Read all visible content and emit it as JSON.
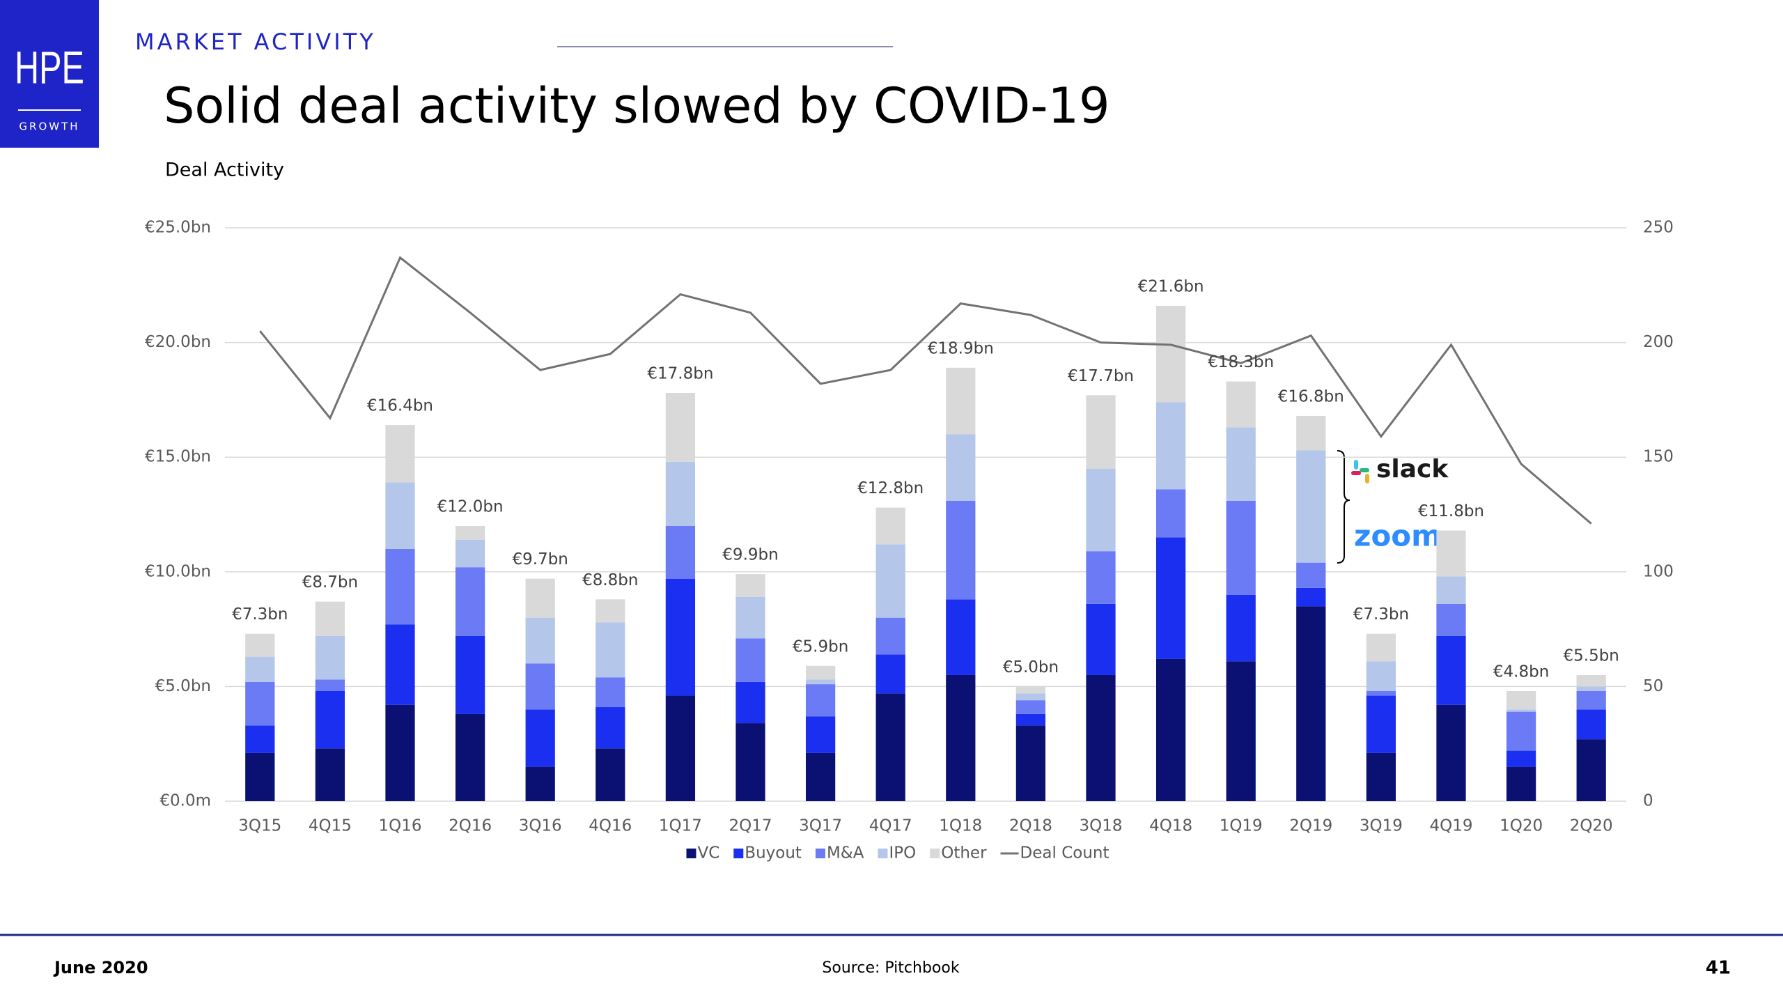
{
  "header": {
    "logo_main": "HPE",
    "logo_sub": "GROWTH",
    "section": "MARKET ACTIVITY",
    "title": "Solid deal activity slowed by COVID-19"
  },
  "chart_data": {
    "type": "bar",
    "stacked": true,
    "subtitle": "Deal Activity",
    "categories": [
      "3Q15",
      "4Q15",
      "1Q16",
      "2Q16",
      "3Q16",
      "4Q16",
      "1Q17",
      "2Q17",
      "3Q17",
      "4Q17",
      "1Q18",
      "2Q18",
      "3Q18",
      "4Q18",
      "1Q19",
      "2Q19",
      "3Q19",
      "4Q19",
      "1Q20",
      "2Q20"
    ],
    "series": [
      {
        "name": "VC",
        "color": "#0a1172",
        "values": [
          2.1,
          2.3,
          4.2,
          3.8,
          1.5,
          2.3,
          4.6,
          3.4,
          2.1,
          4.7,
          5.5,
          3.3,
          5.5,
          6.2,
          6.1,
          8.5,
          2.1,
          4.2,
          1.5,
          2.7
        ]
      },
      {
        "name": "Buyout",
        "color": "#1a2ff0",
        "values": [
          1.2,
          2.5,
          3.5,
          3.4,
          2.5,
          1.8,
          5.1,
          1.8,
          1.6,
          1.7,
          3.3,
          0.5,
          3.1,
          5.3,
          2.9,
          0.8,
          2.5,
          3.0,
          0.7,
          1.3
        ]
      },
      {
        "name": "M&A",
        "color": "#6b7af5",
        "values": [
          1.9,
          0.5,
          3.3,
          3.0,
          2.0,
          1.3,
          2.3,
          1.9,
          1.4,
          1.6,
          4.3,
          0.6,
          2.3,
          2.1,
          4.1,
          1.1,
          0.2,
          1.4,
          1.7,
          0.8
        ]
      },
      {
        "name": "IPO",
        "color": "#b4c6ea",
        "values": [
          1.1,
          1.9,
          2.9,
          1.2,
          2.0,
          2.4,
          2.8,
          1.8,
          0.2,
          3.2,
          2.9,
          0.3,
          3.6,
          3.8,
          3.2,
          4.9,
          1.3,
          1.2,
          0.1,
          0.2
        ]
      },
      {
        "name": "Other",
        "color": "#d9d9d9",
        "values": [
          1.0,
          1.5,
          2.5,
          0.6,
          1.7,
          1.0,
          3.0,
          1.0,
          0.6,
          1.6,
          2.9,
          0.3,
          3.2,
          4.2,
          2.0,
          1.5,
          1.2,
          2.0,
          0.8,
          0.5
        ]
      },
      {
        "name": "Deal Count",
        "type": "line",
        "axis": "y2",
        "color": "#767171",
        "values": [
          205,
          167,
          237,
          213,
          188,
          195,
          221,
          213,
          182,
          188,
          217,
          212,
          200,
          199,
          191,
          203,
          159,
          199,
          147,
          121
        ]
      }
    ],
    "totals": {
      "values": [
        7.3,
        8.7,
        16.4,
        12.0,
        9.7,
        8.8,
        17.8,
        9.9,
        5.9,
        12.8,
        18.9,
        5.0,
        17.7,
        21.6,
        18.3,
        16.8,
        7.3,
        11.8,
        4.8,
        5.5
      ],
      "value_labels": [
        "€7.3bn",
        "€8.7bn",
        "€16.4bn",
        "€12.0bn",
        "€9.7bn",
        "€8.8bn",
        "€17.8bn",
        "€9.9bn",
        "€5.9bn",
        "€12.8bn",
        "€18.9bn",
        "€5.0bn",
        "€17.7bn",
        "€21.6bn",
        "€18.3bn",
        "€16.8bn",
        "€7.3bn",
        "€11.8bn",
        "€4.8bn",
        "€5.5bn"
      ]
    },
    "ylim": [
      0,
      25
    ],
    "yticks": [
      {
        "value": 0,
        "label": "€0.0m"
      },
      {
        "value": 5,
        "label": "€5.0bn"
      },
      {
        "value": 10,
        "label": "€10.0bn"
      },
      {
        "value": 15,
        "label": "€15.0bn"
      },
      {
        "value": 20,
        "label": "€20.0bn"
      },
      {
        "value": 25,
        "label": "€25.0bn"
      }
    ],
    "y2lim": [
      0,
      250
    ],
    "y2ticks": [
      0,
      50,
      100,
      150,
      200,
      250
    ],
    "grid": true,
    "legend": "bottom",
    "annotations": [
      "slack",
      "zoom"
    ]
  },
  "footer": {
    "date": "June 2020",
    "source": "Source: Pitchbook",
    "page": "41"
  }
}
